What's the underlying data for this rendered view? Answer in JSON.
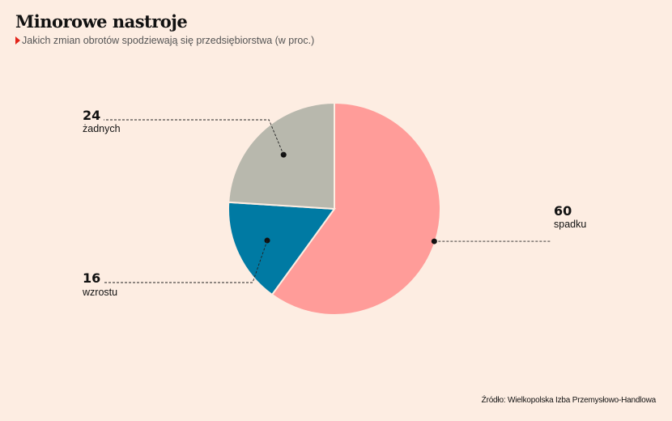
{
  "header": {
    "title": "Minorowe nastroje",
    "subtitle": "Jakich zmian obrotów spodziewają się przedsiębiorstwa (w proc.)"
  },
  "source": "Źródło: Wielkopolska Izba Przemysłowo-Handlowa",
  "colors": {
    "background": "#fdede2",
    "accent": "#e2241a"
  },
  "chart_data": {
    "type": "pie",
    "unit": "proc.",
    "slices": [
      {
        "label": "spadku",
        "value": 60,
        "display": "60",
        "color": "#ff9c99"
      },
      {
        "label": "wzrostu",
        "value": 16,
        "display": "16",
        "color": "#007aa3"
      },
      {
        "label": "żadnych",
        "value": 24,
        "display": "24",
        "color": "#b8b8ad"
      }
    ]
  }
}
